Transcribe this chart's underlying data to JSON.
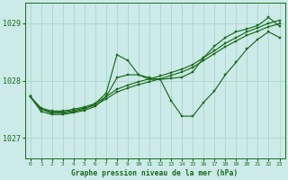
{
  "title": "Graphe pression niveau de la mer (hPa)",
  "bg_color": "#cceae8",
  "grid_color": "#aad4d0",
  "line_color": "#1a6b1a",
  "xlim": [
    -0.5,
    23.5
  ],
  "ylim": [
    1026.65,
    1029.35
  ],
  "yticks": [
    1027,
    1028,
    1029
  ],
  "xticks": [
    0,
    1,
    2,
    3,
    4,
    5,
    6,
    7,
    8,
    9,
    10,
    11,
    12,
    13,
    14,
    15,
    16,
    17,
    18,
    19,
    20,
    21,
    22,
    23
  ],
  "series": [
    {
      "x": [
        0,
        1,
        2,
        3,
        4,
        5,
        6,
        7,
        8,
        9,
        10,
        11,
        12,
        13,
        14,
        15,
        16,
        17,
        18,
        19,
        20,
        21,
        22,
        23
      ],
      "y": [
        1027.72,
        1027.52,
        1027.47,
        1027.47,
        1027.5,
        1027.54,
        1027.6,
        1027.72,
        1027.85,
        1027.92,
        1027.98,
        1028.03,
        1028.08,
        1028.14,
        1028.2,
        1028.28,
        1028.4,
        1028.52,
        1028.65,
        1028.75,
        1028.85,
        1028.92,
        1029.0,
        1029.05
      ]
    },
    {
      "x": [
        0,
        1,
        2,
        3,
        4,
        5,
        6,
        7,
        8,
        9,
        10,
        11,
        12,
        13,
        14,
        15,
        16,
        17,
        18,
        19,
        20,
        21,
        22,
        23
      ],
      "y": [
        1027.72,
        1027.5,
        1027.45,
        1027.45,
        1027.48,
        1027.52,
        1027.57,
        1027.68,
        1027.8,
        1027.87,
        1027.93,
        1027.98,
        1028.03,
        1028.09,
        1028.15,
        1028.23,
        1028.35,
        1028.47,
        1028.59,
        1028.69,
        1028.79,
        1028.86,
        1028.94,
        1028.99
      ]
    },
    {
      "x": [
        0,
        1,
        2,
        3,
        4,
        5,
        6,
        7,
        8,
        9,
        10,
        11,
        12,
        13,
        14,
        15,
        16,
        17,
        18,
        19,
        20,
        21,
        22,
        23
      ],
      "y": [
        1027.72,
        1027.5,
        1027.43,
        1027.43,
        1027.46,
        1027.5,
        1027.6,
        1027.78,
        1028.45,
        1028.35,
        1028.1,
        1028.02,
        1028.02,
        1028.04,
        1028.06,
        1028.15,
        1028.4,
        1028.6,
        1028.75,
        1028.85,
        1028.9,
        1028.96,
        1029.1,
        1028.95
      ]
    },
    {
      "x": [
        0,
        1,
        2,
        3,
        4,
        5,
        6,
        7,
        8,
        9,
        10,
        11,
        12,
        13,
        14,
        15,
        16,
        17,
        18,
        19,
        20,
        21,
        22,
        23
      ],
      "y": [
        1027.72,
        1027.46,
        1027.41,
        1027.41,
        1027.44,
        1027.48,
        1027.55,
        1027.72,
        1028.05,
        1028.1,
        1028.1,
        1028.05,
        1028.02,
        1027.65,
        1027.38,
        1027.38,
        1027.62,
        1027.82,
        1028.1,
        1028.32,
        1028.55,
        1028.72,
        1028.85,
        1028.75
      ]
    }
  ]
}
